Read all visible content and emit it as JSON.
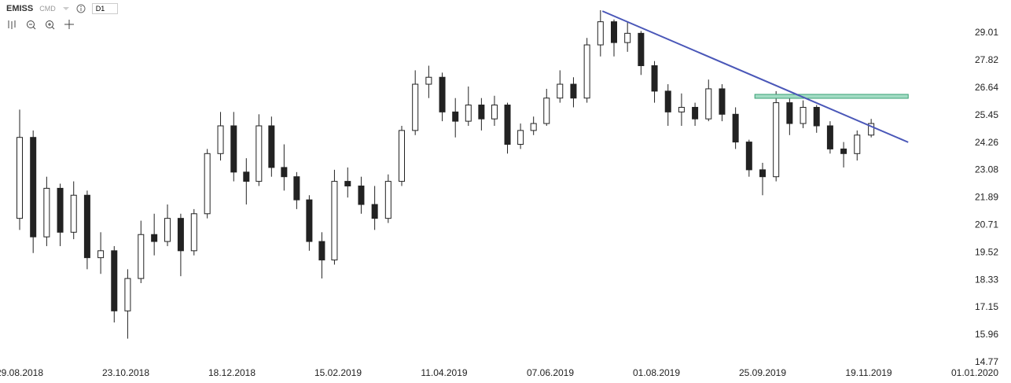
{
  "header": {
    "symbol": "EMISS",
    "source": "CMD",
    "timeframe": "D1"
  },
  "chart_data": {
    "type": "candlestick",
    "x": [
      "29.08.2018",
      "05.09.2018",
      "12.09.2018",
      "19.09.2018",
      "26.09.2018",
      "03.10.2018",
      "10.10.2018",
      "17.10.2018",
      "24.10.2018",
      "31.10.2018",
      "07.11.2018",
      "14.11.2018",
      "21.11.2018",
      "28.11.2018",
      "05.12.2018",
      "12.12.2018",
      "19.12.2018",
      "26.12.2018",
      "02.01.2019",
      "09.01.2019",
      "16.01.2019",
      "23.01.2019",
      "30.01.2019",
      "06.02.2019",
      "13.02.2019",
      "20.02.2019",
      "27.02.2019",
      "06.03.2019",
      "13.03.2019",
      "20.03.2019",
      "27.03.2019",
      "03.04.2019",
      "10.04.2019",
      "17.04.2019",
      "24.04.2019",
      "01.05.2019",
      "08.05.2019",
      "15.05.2019",
      "22.05.2019",
      "29.05.2019",
      "05.06.2019",
      "12.06.2019",
      "19.06.2019",
      "26.06.2019",
      "03.07.2019",
      "10.07.2019",
      "17.07.2019",
      "24.07.2019",
      "31.07.2019",
      "07.08.2019",
      "14.08.2019",
      "21.08.2019",
      "28.08.2019",
      "04.09.2019",
      "11.09.2019",
      "18.09.2019",
      "25.09.2019",
      "02.10.2019",
      "09.10.2019",
      "16.10.2019",
      "23.10.2019",
      "30.10.2019",
      "06.11.2019",
      "13.11.2019",
      "20.11.2019"
    ],
    "open": [
      21.0,
      24.5,
      20.2,
      22.3,
      20.4,
      22.0,
      19.3,
      19.6,
      17.0,
      18.4,
      20.3,
      20.0,
      21.0,
      19.6,
      21.2,
      23.8,
      25.0,
      23.0,
      22.6,
      25.0,
      23.2,
      22.8,
      21.8,
      20.0,
      19.2,
      22.6,
      22.4,
      21.6,
      21.0,
      22.6,
      24.8,
      26.8,
      27.1,
      25.6,
      25.2,
      25.9,
      25.3,
      25.9,
      24.2,
      24.8,
      25.1,
      26.2,
      26.8,
      26.2,
      28.5,
      29.5,
      28.6,
      29.0,
      27.6,
      26.5,
      25.6,
      25.8,
      25.3,
      26.6,
      25.5,
      24.3,
      23.1,
      22.8,
      26.0,
      25.1,
      25.8,
      25.0,
      24.0,
      23.8,
      24.6
    ],
    "high": [
      25.7,
      24.8,
      22.8,
      22.5,
      22.6,
      22.2,
      20.4,
      19.8,
      18.8,
      20.9,
      21.2,
      21.6,
      21.2,
      21.4,
      24.0,
      25.6,
      25.6,
      23.6,
      25.5,
      25.4,
      24.2,
      23.0,
      22.0,
      20.4,
      23.1,
      23.2,
      22.8,
      22.4,
      22.9,
      25.0,
      27.4,
      27.6,
      27.3,
      26.2,
      26.7,
      26.2,
      26.3,
      26.0,
      25.1,
      25.4,
      26.6,
      27.4,
      27.1,
      28.8,
      30.0,
      29.6,
      29.5,
      29.1,
      27.8,
      26.8,
      26.4,
      26.0,
      27.0,
      26.8,
      25.8,
      24.4,
      23.4,
      26.5,
      26.3,
      26.1,
      25.9,
      25.2,
      24.3,
      24.8,
      25.3
    ],
    "low": [
      20.5,
      19.5,
      19.8,
      19.8,
      20.1,
      18.8,
      18.6,
      16.5,
      15.8,
      18.2,
      19.4,
      19.8,
      18.5,
      19.4,
      21.0,
      23.5,
      22.6,
      21.6,
      22.4,
      22.8,
      22.2,
      21.4,
      19.6,
      18.4,
      19.0,
      21.9,
      21.2,
      20.5,
      20.8,
      22.4,
      24.6,
      26.2,
      25.2,
      24.5,
      25.0,
      24.8,
      25.0,
      23.8,
      24.0,
      24.6,
      25.0,
      26.0,
      25.8,
      26.0,
      28.0,
      28.0,
      28.2,
      27.2,
      26.0,
      25.0,
      25.0,
      25.0,
      25.2,
      25.2,
      24.0,
      22.8,
      22.0,
      22.6,
      24.6,
      24.9,
      24.7,
      23.8,
      23.2,
      23.5,
      24.5
    ],
    "close": [
      24.5,
      20.2,
      22.3,
      20.4,
      22.0,
      19.3,
      19.6,
      17.0,
      18.4,
      20.3,
      20.0,
      21.0,
      19.6,
      21.2,
      23.8,
      25.0,
      23.0,
      22.6,
      25.0,
      23.2,
      22.8,
      21.8,
      20.0,
      19.2,
      22.6,
      22.4,
      21.6,
      21.0,
      22.6,
      24.8,
      26.8,
      27.1,
      25.6,
      25.2,
      25.9,
      25.3,
      25.9,
      24.2,
      24.8,
      25.1,
      26.2,
      26.8,
      26.2,
      28.5,
      29.5,
      28.6,
      29.0,
      27.6,
      26.5,
      25.6,
      25.8,
      25.3,
      26.6,
      25.5,
      24.3,
      23.1,
      22.8,
      26.0,
      25.1,
      25.8,
      25.0,
      24.0,
      23.8,
      24.6,
      25.1
    ],
    "color": "#222222",
    "up_fill": "#ffffff",
    "xlim": [
      "19.08.2018",
      "27.12.2019"
    ],
    "xticks": [
      "29.08.2018",
      "23.10.2018",
      "18.12.2018",
      "15.02.2019",
      "11.04.2019",
      "07.06.2019",
      "01.08.2019",
      "25.09.2019",
      "19.11.2019",
      "01.01.2020"
    ],
    "ylim": [
      14.63,
      30.44
    ],
    "yticks": [
      29.01,
      27.82,
      26.64,
      25.45,
      24.26,
      23.08,
      21.89,
      20.71,
      19.52,
      18.33,
      17.15,
      15.96,
      14.77
    ],
    "grid": false,
    "trendline": {
      "x": [
        "04.07.2019",
        "05.12.2019"
      ],
      "y": [
        29.96,
        24.29
      ],
      "color": "#4a57b8"
    },
    "zone": {
      "x": [
        "21.09.2019",
        "05.12.2019"
      ],
      "y": [
        26.19,
        26.36
      ],
      "color": "#a3dcc4",
      "border": "#3aa076"
    }
  }
}
